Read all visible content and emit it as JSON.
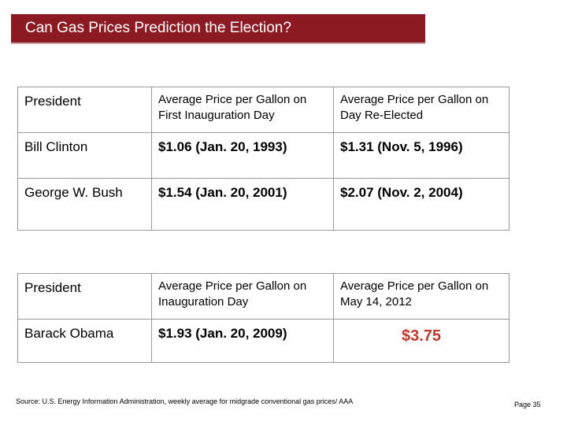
{
  "title": "Can Gas Prices Prediction the Election?",
  "table1": {
    "headers": [
      "President",
      "Average Price per Gallon on First Inauguration Day",
      "Average Price per Gallon on Day Re-Elected"
    ],
    "rows": [
      [
        "Bill Clinton",
        "$1.06 (Jan. 20, 1993)",
        "$1.31 (Nov. 5, 1996)"
      ],
      [
        "George W. Bush",
        "$1.54 (Jan. 20, 2001)",
        "$2.07 (Nov. 2, 2004)"
      ]
    ]
  },
  "table2": {
    "headers": [
      "President",
      "Average Price per Gallon on Inauguration Day",
      "Average Price per Gallon on May 14, 2012"
    ],
    "rows": [
      [
        "Barack Obama",
        "$1.93 (Jan. 20, 2009)",
        "$3.75"
      ]
    ]
  },
  "source": "Source: U.S. Energy Information Administration, weekly average for midgrade conventional gas prices/ AAA",
  "page": "Page 35",
  "colors": {
    "title_bar": "#8b1a22",
    "highlight": "#c0392b"
  }
}
